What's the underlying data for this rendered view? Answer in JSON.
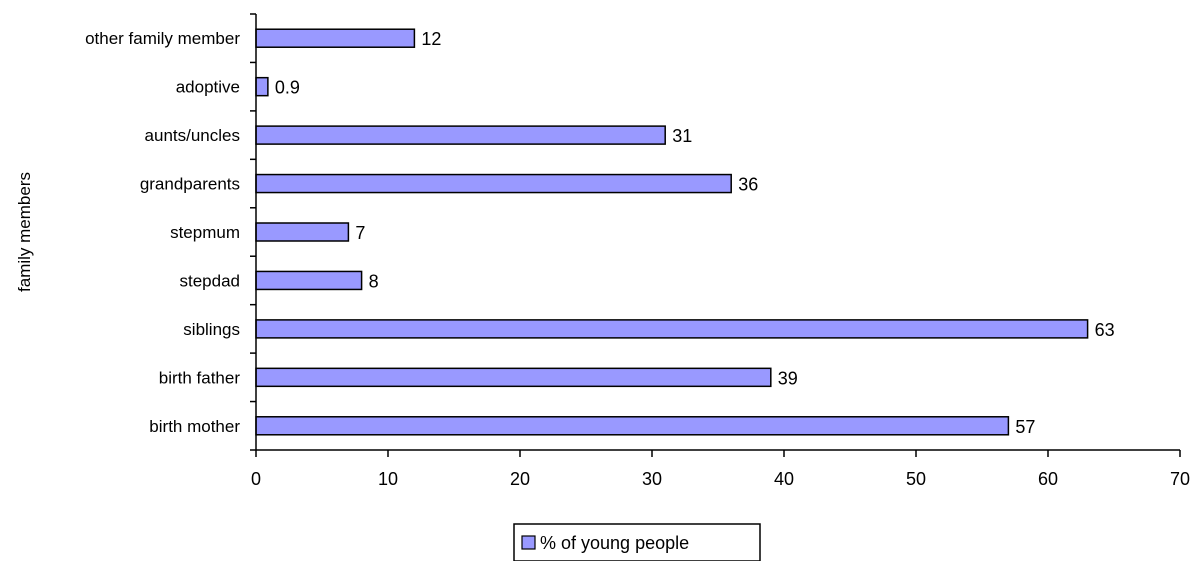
{
  "chart_data": {
    "type": "bar",
    "orientation": "horizontal",
    "categories": [
      "other family member",
      "adoptive",
      "aunts/uncles",
      "grandparents",
      "stepmum",
      "stepdad",
      "siblings",
      "birth father",
      "birth mother"
    ],
    "series": [
      {
        "name": "% of young people",
        "values": [
          12,
          0.9,
          31,
          36,
          7,
          8,
          63,
          39,
          57
        ],
        "color": "#9999ff"
      }
    ],
    "data_labels": [
      "12",
      "0.9",
      "31",
      "36",
      "7",
      "8",
      "63",
      "39",
      "57"
    ],
    "xlabel": "",
    "ylabel": "family members",
    "xlim": [
      0,
      70
    ],
    "xticks": [
      0,
      10,
      20,
      30,
      40,
      50,
      60,
      70
    ],
    "grid": false,
    "legend_position": "bottom"
  }
}
